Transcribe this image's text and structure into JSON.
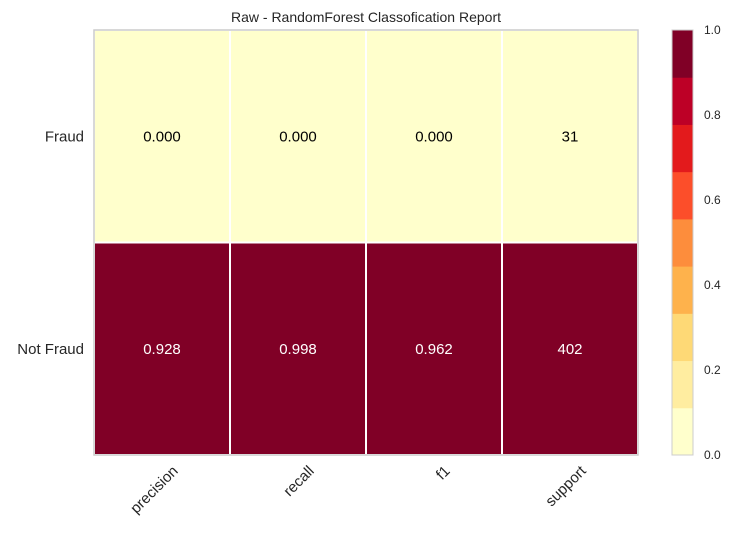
{
  "chart_data": {
    "type": "heatmap",
    "title": "Raw - RandomForest Classofication Report",
    "columns": [
      "precision",
      "recall",
      "f1",
      "support"
    ],
    "rows": [
      "Fraud",
      "Not Fraud"
    ],
    "cells": [
      {
        "row": "Fraud",
        "values": [
          0.0,
          0.0,
          0.0,
          31
        ],
        "labels": [
          "0.000",
          "0.000",
          "0.000",
          "31"
        ]
      },
      {
        "row": "Not Fraud",
        "values": [
          0.928,
          0.998,
          0.962,
          402
        ],
        "labels": [
          "0.928",
          "0.998",
          "0.962",
          "402"
        ]
      }
    ],
    "color_values": [
      [
        0.0,
        0.0,
        0.0,
        0.0
      ],
      [
        0.928,
        0.998,
        0.962,
        1.0
      ]
    ],
    "colorbar": {
      "range": [
        0.0,
        1.0
      ],
      "ticks": [
        "0.0",
        "0.2",
        "0.4",
        "0.6",
        "0.8",
        "1.0"
      ],
      "colors": [
        "#ffffcc",
        "#ffeda0",
        "#fed976",
        "#feb24c",
        "#fd8d3c",
        "#fc4e2a",
        "#e31a1c",
        "#bd0026",
        "#800026"
      ]
    },
    "text_colors": {
      "light_cell": "#000000",
      "dark_cell": "#ffffff"
    },
    "grid": false
  }
}
